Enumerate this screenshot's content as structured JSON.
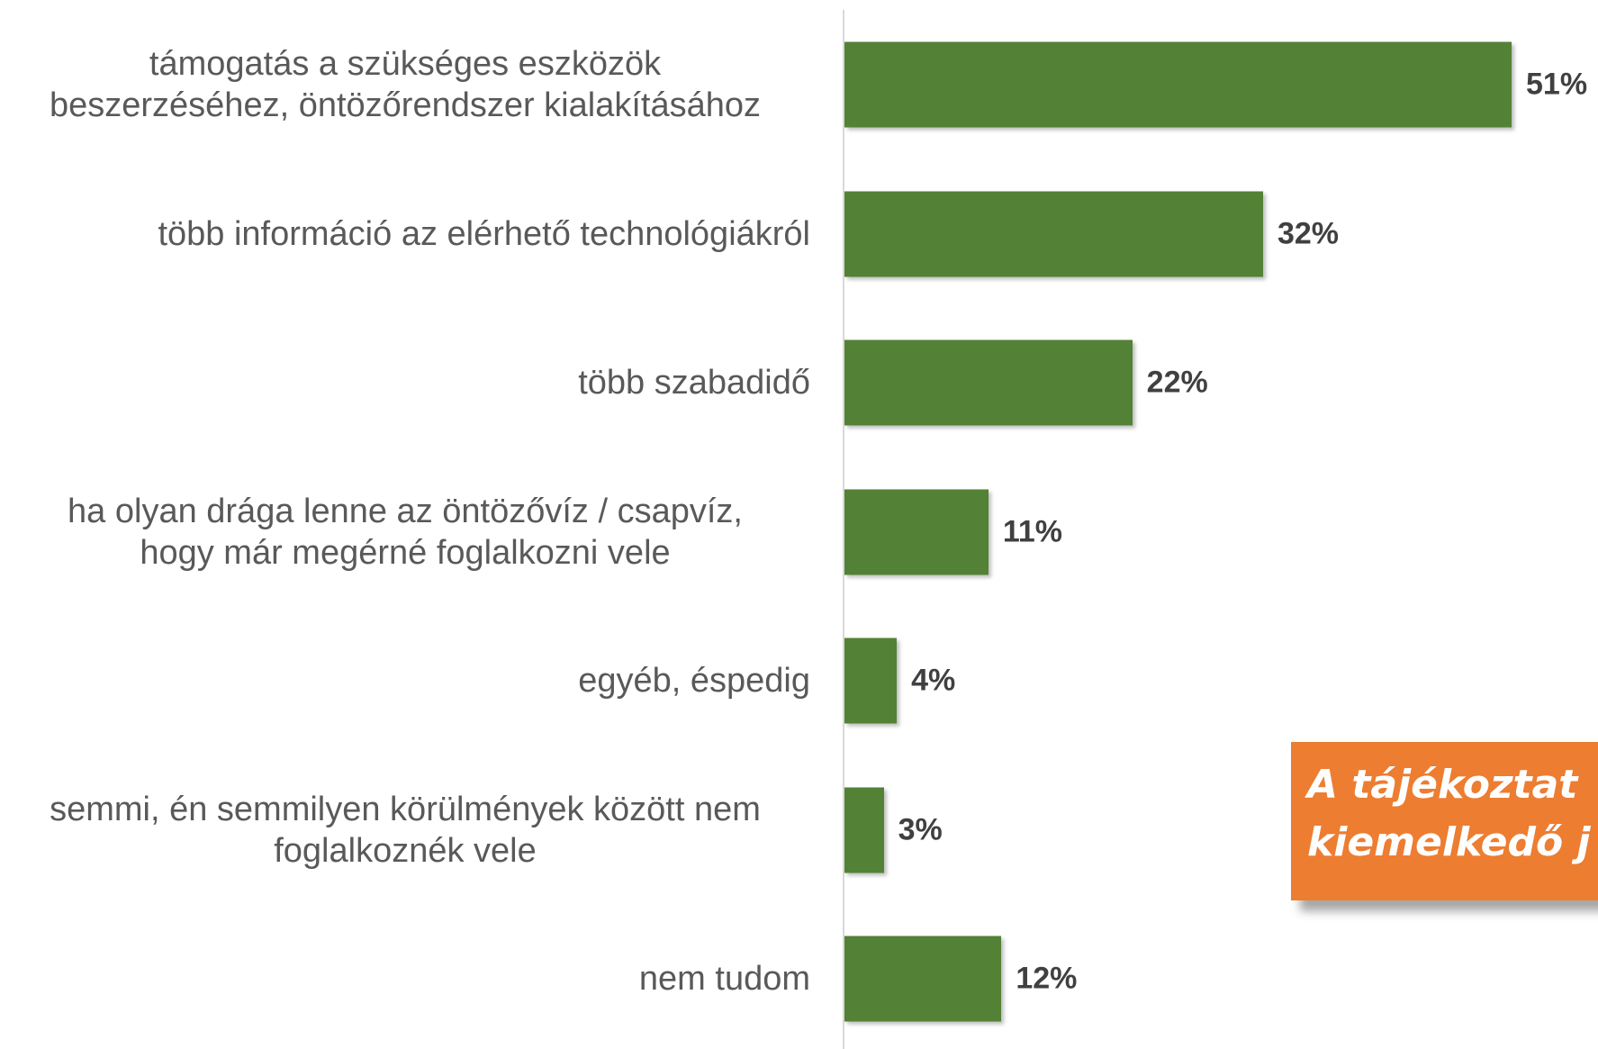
{
  "chart_data": {
    "type": "bar",
    "orientation": "horizontal",
    "categories": [
      "támogatás a szükséges eszközök\nbeszerzéséhez, öntözőrendszer kialakításához",
      "több információ az elérhető technológiákról",
      "több szabadidő",
      "ha olyan drága lenne az öntözővíz / csapvíz,\nhogy már megérné foglalkozni vele",
      "egyéb, éspedig",
      "semmi, én semmilyen körülmények között nem\nfoglalkoznék vele",
      "nem tudom"
    ],
    "values": [
      51,
      32,
      22,
      11,
      4,
      3,
      12
    ],
    "value_labels": [
      "51%",
      "32%",
      "22%",
      "11%",
      "4%",
      "3%",
      "12%"
    ],
    "color": "#538135",
    "annotation": {
      "text": "A tájékoztat\nkiemelkedő j",
      "color": "#ed7d31"
    }
  }
}
